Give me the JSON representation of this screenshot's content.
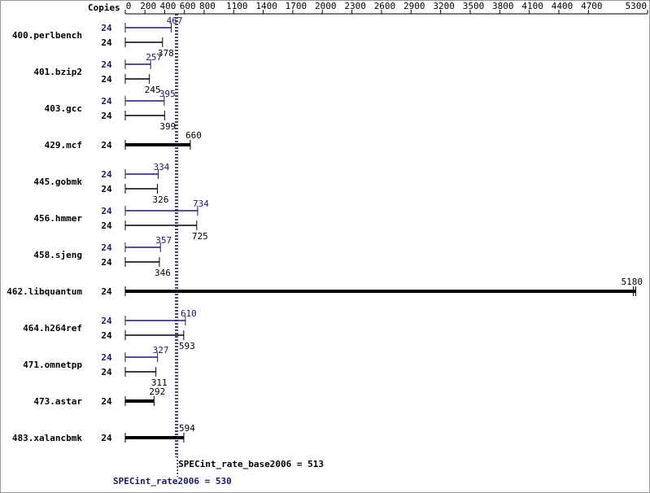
{
  "chart_data": {
    "type": "bar",
    "orientation": "horizontal",
    "copies_label": "Copies",
    "categories": [
      "400.perlbench",
      "401.bzip2",
      "403.gcc",
      "429.mcf",
      "445.gobmk",
      "456.hmmer",
      "458.sjeng",
      "462.libquantum",
      "464.h264ref",
      "471.omnetpp",
      "473.astar",
      "483.xalancbmk"
    ],
    "series": [
      {
        "color": "#000000",
        "copies": [
          24,
          24,
          24,
          24,
          24,
          24,
          24,
          24,
          24,
          24,
          24,
          24
        ],
        "values": [
          378,
          245,
          399,
          660,
          326,
          725,
          346,
          5180,
          593,
          311,
          292,
          594
        ]
      },
      {
        "color": "#191970",
        "copies": [
          24,
          24,
          24,
          null,
          24,
          24,
          24,
          null,
          24,
          24,
          null,
          null
        ],
        "values": [
          467,
          257,
          395,
          null,
          334,
          734,
          357,
          null,
          610,
          327,
          null,
          null
        ]
      }
    ],
    "xlim": [
      0,
      5300
    ],
    "xticks": [
      0,
      200,
      400,
      600,
      800,
      1100,
      1400,
      1700,
      2000,
      2300,
      2600,
      2900,
      3200,
      3500,
      3800,
      4100,
      4400,
      4700,
      5300
    ],
    "reference_lines": [
      {
        "label": "SPECint_rate_base2006 = 513",
        "value": 513,
        "color": "#000000"
      },
      {
        "label": "SPECint_rate2006 = 530",
        "value": 530,
        "color": "#191970"
      }
    ]
  }
}
